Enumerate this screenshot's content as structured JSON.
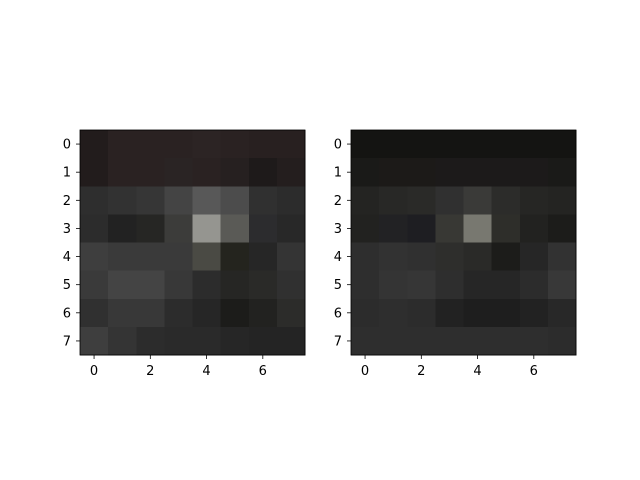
{
  "chart_data": [
    {
      "type": "heatmap",
      "x_ticks": [
        "0",
        "2",
        "4",
        "6"
      ],
      "y_ticks": [
        "0",
        "1",
        "2",
        "3",
        "4",
        "5",
        "6",
        "7"
      ],
      "x_tick_values": [
        0,
        2,
        4,
        6
      ],
      "y_tick_values": [
        0,
        1,
        2,
        3,
        4,
        5,
        6,
        7
      ],
      "rows": 8,
      "cols": 8,
      "pixel_colors": [
        [
          "#221c1c",
          "#2a2222",
          "#2a2222",
          "#2a2222",
          "#2c2424",
          "#2a2222",
          "#282020",
          "#282020"
        ],
        [
          "#221c1c",
          "#2a2222",
          "#2a2222",
          "#2a2424",
          "#2a2222",
          "#262020",
          "#1e1a1a",
          "#241e1e"
        ],
        [
          "#2e2e2e",
          "#323232",
          "#363636",
          "#444444",
          "#585858",
          "#4c4c4c",
          "#303030",
          "#2c2c2c"
        ],
        [
          "#2c2c2c",
          "#222222",
          "#262624",
          "#3c3c3a",
          "#959590",
          "#5a5a56",
          "#2c2c2e",
          "#282828"
        ],
        [
          "#3e3e3e",
          "#3a3a3a",
          "#3a3a3a",
          "#3a3a3a",
          "#4a4a44",
          "#24241e",
          "#262626",
          "#343434"
        ],
        [
          "#3a3a3a",
          "#444444",
          "#444444",
          "#383838",
          "#2c2c2c",
          "#262624",
          "#2a2a28",
          "#303030"
        ],
        [
          "#303030",
          "#383838",
          "#383838",
          "#2c2c2c",
          "#262626",
          "#1c1c1a",
          "#222220",
          "#2c2c2a"
        ],
        [
          "#3e3e3e",
          "#343434",
          "#2c2c2c",
          "#2a2a2a",
          "#2a2a2a",
          "#262626",
          "#242424",
          "#242424"
        ]
      ]
    },
    {
      "type": "heatmap",
      "x_ticks": [
        "0",
        "2",
        "4",
        "6"
      ],
      "y_ticks": [
        "0",
        "1",
        "2",
        "3",
        "4",
        "5",
        "6",
        "7"
      ],
      "x_tick_values": [
        0,
        2,
        4,
        6
      ],
      "y_tick_values": [
        0,
        1,
        2,
        3,
        4,
        5,
        6,
        7
      ],
      "rows": 8,
      "cols": 8,
      "pixel_colors": [
        [
          "#141412",
          "#141412",
          "#141412",
          "#141412",
          "#141412",
          "#141412",
          "#141412",
          "#141412"
        ],
        [
          "#1a1a18",
          "#1c1a18",
          "#1c1a18",
          "#1c1a1a",
          "#1c1a1a",
          "#1c1a1a",
          "#1c1a1a",
          "#1a1a18"
        ],
        [
          "#242422",
          "#282826",
          "#2a2a28",
          "#303030",
          "#3a3a38",
          "#2c2c2a",
          "#262624",
          "#242422"
        ],
        [
          "#222220",
          "#222224",
          "#1e1e22",
          "#383834",
          "#787870",
          "#2e2e2a",
          "#222220",
          "#1c1c1a"
        ],
        [
          "#2e2e2e",
          "#323232",
          "#303030",
          "#2e2e2c",
          "#2a2a28",
          "#1c1c1a",
          "#262626",
          "#323232"
        ],
        [
          "#2e2e2e",
          "#343434",
          "#363636",
          "#2e2e2e",
          "#262626",
          "#262626",
          "#2c2c2c",
          "#383838"
        ],
        [
          "#2c2c2c",
          "#2e2e2e",
          "#2c2c2c",
          "#222222",
          "#1e1e1e",
          "#1e1e1e",
          "#222222",
          "#282828"
        ],
        [
          "#2e2e2e",
          "#2e2e2e",
          "#2e2e2e",
          "#2e2e2e",
          "#2e2e2e",
          "#2e2e2e",
          "#2e2e2e",
          "#2c2c2c"
        ]
      ]
    }
  ]
}
